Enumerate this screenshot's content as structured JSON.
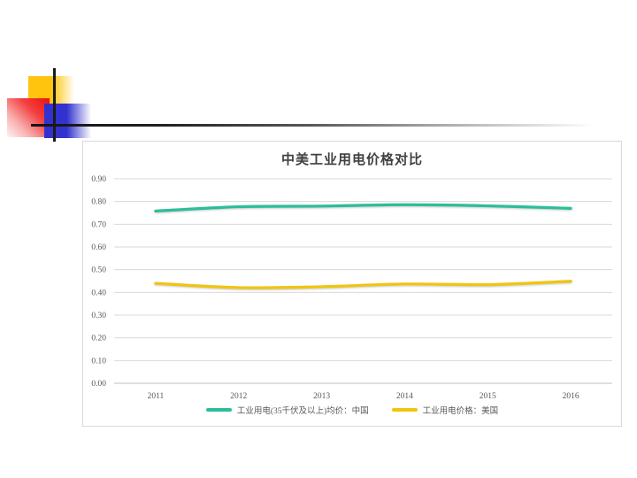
{
  "ornament": {
    "yellow_square_color": "#FFC40E",
    "red_square_color": "#EE1111",
    "blue_square_color": "#3232CE",
    "cross_line_color": "#1B1B1B"
  },
  "chart_data": {
    "type": "line",
    "title": "中美工业用电价格对比",
    "categories": [
      "2011",
      "2012",
      "2013",
      "2014",
      "2015",
      "2016"
    ],
    "series": [
      {
        "name": "工业用电(35千伏及以上)均价：中国",
        "color": "#2CBE9A",
        "values": [
          0.758,
          0.777,
          0.78,
          0.786,
          0.781,
          0.77
        ]
      },
      {
        "name": "工业用电价格：美国",
        "color": "#F1C40F",
        "values": [
          0.44,
          0.421,
          0.425,
          0.437,
          0.434,
          0.449
        ]
      }
    ],
    "ylim": [
      0.0,
      0.9
    ],
    "ytick_labels": [
      "0.00",
      "0.10",
      "0.20",
      "0.30",
      "0.40",
      "0.50",
      "0.60",
      "0.70",
      "0.80",
      "0.90"
    ],
    "grid": true,
    "smoothed_lines": true,
    "legend_position": "bottom",
    "colors": {
      "gridline": "#D9D9D9",
      "axis_line": "#BFBFBF",
      "tick_label": "#595959",
      "title": "#404040",
      "frame_border": "#D9D9D9"
    }
  }
}
